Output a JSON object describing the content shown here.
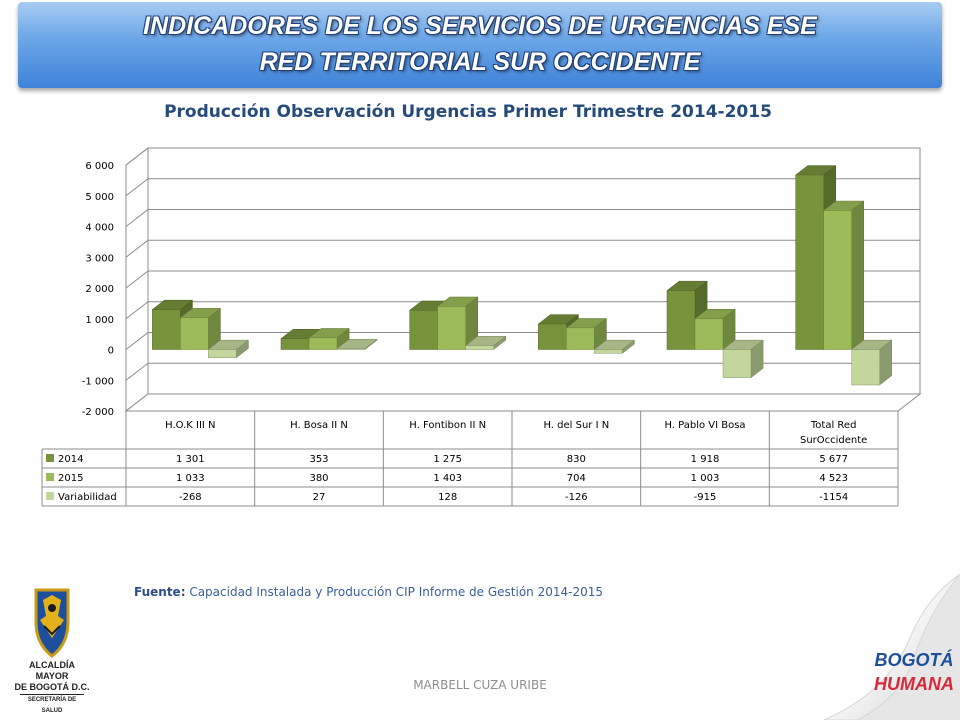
{
  "header": {
    "line1": "INDICADORES DE LOS SERVICIOS DE URGENCIAS ESE",
    "line2": "RED TERRITORIAL SUR OCCIDENTE"
  },
  "chart_data": {
    "type": "bar",
    "title": "Producción Observación Urgencias Primer Trimestre 2014-2015",
    "categories": [
      "H.O.K  III N",
      "H. Bosa II N",
      "H. Fontibon II N",
      "H. del Sur I N",
      "H. Pablo VI Bosa",
      "Total Red SurOccidente"
    ],
    "series": [
      {
        "name": "2014",
        "values": [
          1301,
          353,
          1275,
          830,
          1918,
          5677
        ],
        "color": "#77933c",
        "labels": [
          "1 301",
          "353",
          "1 275",
          "830",
          "1 918",
          "5 677"
        ]
      },
      {
        "name": "2015",
        "values": [
          1033,
          380,
          1403,
          704,
          1003,
          4523
        ],
        "color": "#9bbb59",
        "labels": [
          "1 033",
          "380",
          "1 403",
          "704",
          "1 003",
          "4 523"
        ]
      },
      {
        "name": "Variabilidad",
        "values": [
          -268,
          27,
          128,
          -126,
          -915,
          -1154
        ],
        "color": "#c3d69b",
        "labels": [
          "-268",
          "27",
          "128",
          "-126",
          "-915",
          "-1154"
        ]
      }
    ],
    "y_ticks": [
      -2000,
      -1000,
      0,
      1000,
      2000,
      3000,
      4000,
      5000,
      6000
    ],
    "y_tick_labels": [
      "-2 000",
      "-1 000",
      "0",
      "1 000",
      "2 000",
      "3 000",
      "4 000",
      "5 000",
      "6 000"
    ],
    "ylim": [
      -2000,
      6000
    ],
    "grid": true,
    "legend": "data-table",
    "three_d": true
  },
  "source": {
    "label": "Fuente:",
    "text": " Capacidad Instalada y Producción CIP Informe de Gestión 2014-2015"
  },
  "footer": {
    "author": "MARBELL CUZA URIBE"
  },
  "logos": {
    "alcaldia_line1": "ALCALDÍA MAYOR",
    "alcaldia_line2": "DE BOGOTÁ D.C.",
    "alcaldia_line3": "SECRETARÍA DE SALUD",
    "bogota_line1": "BOGOTÁ",
    "bogota_line2": "HUMANA"
  }
}
